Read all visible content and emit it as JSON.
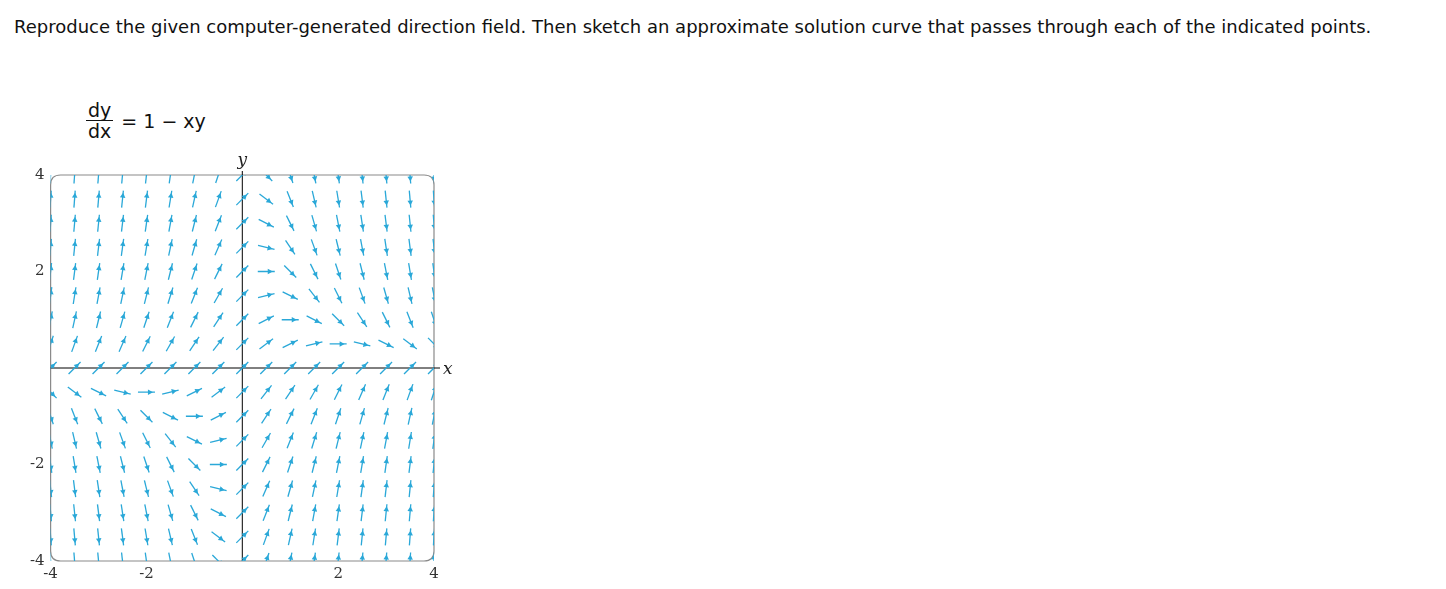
{
  "problem_text": "Reproduce the given computer-generated direction field. Then sketch an approximate solution curve that passes through each of the indicated points.",
  "chart_data": {
    "type": "direction_field",
    "equation": {
      "numerator": "dy",
      "denominator": "dx",
      "rhs": "= 1 − xy"
    },
    "x_label": "x",
    "y_label": "y",
    "grid_x": [
      -4,
      -3.5,
      -3,
      -2.5,
      -2,
      -1.5,
      -1,
      -0.5,
      0,
      0.5,
      1,
      1.5,
      2,
      2.5,
      3,
      3.5,
      4
    ],
    "grid_y": [
      -4,
      -3.5,
      -3,
      -2.5,
      -2,
      -1.5,
      -1,
      -0.5,
      0,
      0.5,
      1,
      1.5,
      2,
      2.5,
      3,
      3.5,
      4
    ],
    "slopes": [
      [
        -15,
        -13,
        -11,
        -9,
        -7,
        -5,
        -3,
        -1,
        1,
        3,
        5,
        7,
        9,
        11,
        13,
        15,
        17
      ],
      [
        -13,
        -11.25,
        -9.5,
        -7.75,
        -6,
        -4.25,
        -2.5,
        -0.75,
        1,
        2.75,
        4.5,
        6.25,
        8,
        9.75,
        11.5,
        13.25,
        15
      ],
      [
        -11,
        -9.5,
        -8,
        -6.5,
        -5,
        -3.5,
        -2,
        -0.5,
        1,
        2.5,
        4,
        5.5,
        7,
        8.5,
        10,
        11.5,
        13
      ],
      [
        -9,
        -7.75,
        -6.5,
        -5.25,
        -4,
        -2.75,
        -1.5,
        -0.25,
        1,
        2.25,
        3.5,
        4.75,
        6,
        7.25,
        8.5,
        9.75,
        11
      ],
      [
        -7,
        -6,
        -5,
        -4,
        -3,
        -2,
        -1,
        0,
        1,
        2,
        3,
        4,
        5,
        6,
        7,
        8,
        9
      ],
      [
        -5,
        -4.25,
        -3.5,
        -2.75,
        -2,
        -1.25,
        -0.5,
        0.25,
        1,
        1.75,
        2.5,
        3.25,
        4,
        4.75,
        5.5,
        6.25,
        7
      ],
      [
        -3,
        -2.5,
        -2,
        -1.5,
        -1,
        -0.5,
        0,
        0.5,
        1,
        1.5,
        2,
        2.5,
        3,
        3.5,
        4,
        4.5,
        5
      ],
      [
        -1,
        -0.75,
        -0.5,
        -0.25,
        0,
        0.25,
        0.5,
        0.75,
        1,
        1.25,
        1.5,
        1.75,
        2,
        2.25,
        2.5,
        2.75,
        3
      ],
      [
        1,
        1,
        1,
        1,
        1,
        1,
        1,
        1,
        1,
        1,
        1,
        1,
        1,
        1,
        1,
        1,
        1
      ],
      [
        3,
        2.75,
        2.5,
        2.25,
        2,
        1.75,
        1.5,
        1.25,
        1,
        0.75,
        0.5,
        0.25,
        0,
        -0.25,
        -0.5,
        -0.75,
        -1
      ],
      [
        5,
        4.5,
        4,
        3.5,
        3,
        2.5,
        2,
        1.5,
        1,
        0.5,
        0,
        -0.5,
        -1,
        -1.5,
        -2,
        -2.5,
        -3
      ],
      [
        7,
        6.25,
        5.5,
        4.75,
        4,
        3.25,
        2.5,
        1.75,
        1,
        0.25,
        -0.5,
        -1.25,
        -2,
        -2.75,
        -3.5,
        -4.25,
        -5
      ],
      [
        9,
        8,
        7,
        6,
        5,
        4,
        3,
        2,
        1,
        0,
        -1,
        -2,
        -3,
        -4,
        -5,
        -6,
        -7
      ],
      [
        11,
        9.75,
        8.5,
        7.25,
        6,
        4.75,
        3.5,
        2.25,
        1,
        -0.25,
        -1.5,
        -2.75,
        -4,
        -5.25,
        -6.5,
        -7.75,
        -9
      ],
      [
        13,
        11.5,
        10,
        8.5,
        7,
        5.5,
        4,
        2.5,
        1,
        -0.5,
        -2,
        -3.5,
        -5,
        -6.5,
        -8,
        -9.5,
        -11
      ],
      [
        15,
        13.25,
        11.5,
        9.75,
        8,
        6.25,
        4.5,
        2.75,
        1,
        -0.75,
        -2.5,
        -4.25,
        -6,
        -7.75,
        -9.5,
        -11.25,
        -13
      ],
      [
        17,
        15,
        13,
        11,
        9,
        7,
        5,
        3,
        1,
        -1,
        -3,
        -5,
        -7,
        -9,
        -11,
        -13,
        -15
      ]
    ],
    "color": "#2aa8d8",
    "xlim": [
      -4,
      4
    ],
    "ylim": [
      -4,
      4
    ],
    "xticks": [
      -4,
      -2,
      2,
      4
    ],
    "yticks": [
      -4,
      -2,
      2,
      4
    ],
    "grid": false
  }
}
